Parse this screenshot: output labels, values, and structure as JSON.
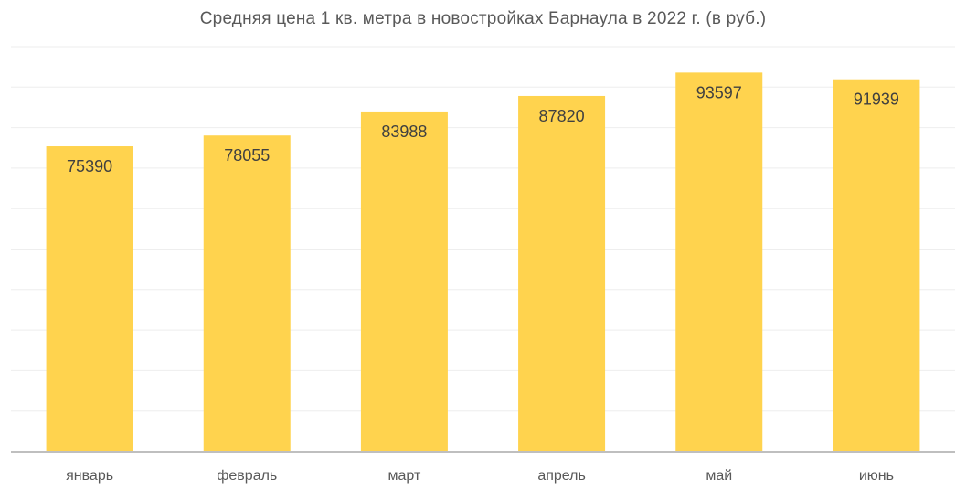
{
  "chart_data": {
    "type": "bar",
    "title": "Средняя цена 1 кв. метра в новостройках Барнаула в 2022 г. (в руб.)",
    "categories": [
      "январь",
      "февраль",
      "март",
      "апрель",
      "май",
      "июнь"
    ],
    "values": [
      75390,
      78055,
      83988,
      87820,
      93597,
      91939
    ],
    "data_labels": [
      "75390",
      "78055",
      "83988",
      "87820",
      "93597",
      "91939"
    ],
    "xlabel": "",
    "ylabel": "",
    "ylim": [
      0,
      100000
    ],
    "grid": true,
    "legend": "none",
    "bar_color": "#FFD34E"
  }
}
